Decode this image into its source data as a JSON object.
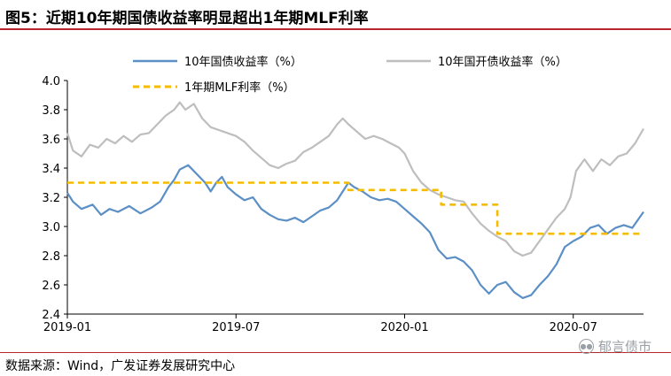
{
  "header": {
    "title": "图5：近期10年期国债收益率明显超出1年期MLF利率"
  },
  "footer": {
    "source": "数据来源：Wind，广发证券发展研究中心",
    "watermark": "郁言债市",
    "watermark_icon": "wechat-logo-icon"
  },
  "colors": {
    "gov10y": "#5b8fc6",
    "cdb10y": "#bebebe",
    "mlf1y": "#f5bb00",
    "rule": "#b8252d"
  },
  "chart_data": {
    "type": "line",
    "title": "图5：近期10年期国债收益率明显超出1年期MLF利率",
    "xlabel": "",
    "ylabel": "",
    "xlim": [
      0,
      20.5
    ],
    "ylim": [
      2.4,
      4.0
    ],
    "yticks": [
      "4.0",
      "3.8",
      "3.6",
      "3.4",
      "3.2",
      "3.0",
      "2.8",
      "2.6",
      "2.4"
    ],
    "xticks": [
      {
        "x": 0,
        "label": "2019-01"
      },
      {
        "x": 6,
        "label": "2019-07"
      },
      {
        "x": 12,
        "label": "2020-01"
      },
      {
        "x": 18,
        "label": "2020-07"
      }
    ],
    "x_unit": "months since 2019-01",
    "grid": false,
    "legend_position": "top",
    "series": [
      {
        "name": "10年国债收益率（%）",
        "style": "solid",
        "points": [
          [
            0,
            3.23
          ],
          [
            0.2,
            3.17
          ],
          [
            0.5,
            3.12
          ],
          [
            0.9,
            3.15
          ],
          [
            1.2,
            3.08
          ],
          [
            1.5,
            3.12
          ],
          [
            1.8,
            3.1
          ],
          [
            2.2,
            3.14
          ],
          [
            2.6,
            3.09
          ],
          [
            3.0,
            3.13
          ],
          [
            3.3,
            3.17
          ],
          [
            3.6,
            3.27
          ],
          [
            3.8,
            3.32
          ],
          [
            4.0,
            3.39
          ],
          [
            4.3,
            3.42
          ],
          [
            4.6,
            3.36
          ],
          [
            4.9,
            3.3
          ],
          [
            5.1,
            3.24
          ],
          [
            5.3,
            3.3
          ],
          [
            5.5,
            3.34
          ],
          [
            5.7,
            3.27
          ],
          [
            6.0,
            3.22
          ],
          [
            6.3,
            3.18
          ],
          [
            6.6,
            3.2
          ],
          [
            6.9,
            3.12
          ],
          [
            7.2,
            3.08
          ],
          [
            7.5,
            3.05
          ],
          [
            7.8,
            3.04
          ],
          [
            8.1,
            3.06
          ],
          [
            8.4,
            3.03
          ],
          [
            8.7,
            3.07
          ],
          [
            9.0,
            3.11
          ],
          [
            9.3,
            3.13
          ],
          [
            9.6,
            3.18
          ],
          [
            9.8,
            3.24
          ],
          [
            10.0,
            3.3
          ],
          [
            10.2,
            3.27
          ],
          [
            10.5,
            3.24
          ],
          [
            10.8,
            3.2
          ],
          [
            11.1,
            3.18
          ],
          [
            11.4,
            3.19
          ],
          [
            11.7,
            3.17
          ],
          [
            12.0,
            3.12
          ],
          [
            12.3,
            3.07
          ],
          [
            12.6,
            3.02
          ],
          [
            12.9,
            2.96
          ],
          [
            13.2,
            2.84
          ],
          [
            13.5,
            2.78
          ],
          [
            13.8,
            2.79
          ],
          [
            14.1,
            2.76
          ],
          [
            14.4,
            2.7
          ],
          [
            14.7,
            2.6
          ],
          [
            15.0,
            2.54
          ],
          [
            15.3,
            2.6
          ],
          [
            15.6,
            2.62
          ],
          [
            15.9,
            2.55
          ],
          [
            16.2,
            2.51
          ],
          [
            16.5,
            2.53
          ],
          [
            16.8,
            2.6
          ],
          [
            17.1,
            2.66
          ],
          [
            17.4,
            2.74
          ],
          [
            17.7,
            2.86
          ],
          [
            18.0,
            2.9
          ],
          [
            18.3,
            2.93
          ],
          [
            18.6,
            2.99
          ],
          [
            18.9,
            3.01
          ],
          [
            19.2,
            2.95
          ],
          [
            19.5,
            2.99
          ],
          [
            19.8,
            3.01
          ],
          [
            20.1,
            2.99
          ],
          [
            20.5,
            3.1
          ]
        ]
      },
      {
        "name": "10年国开债收益率（%）",
        "style": "solid",
        "points": [
          [
            0,
            3.64
          ],
          [
            0.2,
            3.52
          ],
          [
            0.5,
            3.48
          ],
          [
            0.8,
            3.56
          ],
          [
            1.1,
            3.54
          ],
          [
            1.4,
            3.6
          ],
          [
            1.7,
            3.57
          ],
          [
            2.0,
            3.62
          ],
          [
            2.3,
            3.58
          ],
          [
            2.6,
            3.63
          ],
          [
            2.9,
            3.64
          ],
          [
            3.2,
            3.7
          ],
          [
            3.5,
            3.76
          ],
          [
            3.8,
            3.8
          ],
          [
            4.0,
            3.85
          ],
          [
            4.2,
            3.8
          ],
          [
            4.5,
            3.84
          ],
          [
            4.8,
            3.74
          ],
          [
            5.1,
            3.68
          ],
          [
            5.4,
            3.66
          ],
          [
            5.7,
            3.64
          ],
          [
            6.0,
            3.62
          ],
          [
            6.3,
            3.58
          ],
          [
            6.6,
            3.52
          ],
          [
            6.9,
            3.47
          ],
          [
            7.2,
            3.42
          ],
          [
            7.5,
            3.4
          ],
          [
            7.8,
            3.43
          ],
          [
            8.1,
            3.45
          ],
          [
            8.4,
            3.51
          ],
          [
            8.7,
            3.54
          ],
          [
            9.0,
            3.58
          ],
          [
            9.3,
            3.62
          ],
          [
            9.6,
            3.7
          ],
          [
            9.8,
            3.74
          ],
          [
            10.0,
            3.7
          ],
          [
            10.3,
            3.65
          ],
          [
            10.6,
            3.6
          ],
          [
            10.9,
            3.62
          ],
          [
            11.2,
            3.6
          ],
          [
            11.5,
            3.57
          ],
          [
            11.8,
            3.54
          ],
          [
            12.0,
            3.5
          ],
          [
            12.3,
            3.38
          ],
          [
            12.6,
            3.3
          ],
          [
            12.9,
            3.25
          ],
          [
            13.2,
            3.22
          ],
          [
            13.5,
            3.2
          ],
          [
            13.8,
            3.18
          ],
          [
            14.1,
            3.17
          ],
          [
            14.4,
            3.09
          ],
          [
            14.7,
            3.02
          ],
          [
            15.0,
            2.97
          ],
          [
            15.3,
            2.93
          ],
          [
            15.6,
            2.9
          ],
          [
            15.9,
            2.83
          ],
          [
            16.2,
            2.8
          ],
          [
            16.5,
            2.82
          ],
          [
            16.8,
            2.9
          ],
          [
            17.1,
            2.98
          ],
          [
            17.4,
            3.06
          ],
          [
            17.7,
            3.12
          ],
          [
            17.9,
            3.2
          ],
          [
            18.1,
            3.38
          ],
          [
            18.4,
            3.46
          ],
          [
            18.7,
            3.38
          ],
          [
            19.0,
            3.46
          ],
          [
            19.3,
            3.42
          ],
          [
            19.6,
            3.48
          ],
          [
            19.9,
            3.5
          ],
          [
            20.2,
            3.57
          ],
          [
            20.5,
            3.67
          ]
        ]
      },
      {
        "name": "1年期MLF利率（%）",
        "style": "dashed",
        "points": [
          [
            0,
            3.3
          ],
          [
            10.0,
            3.3
          ],
          [
            10.0,
            3.25
          ],
          [
            13.3,
            3.25
          ],
          [
            13.3,
            3.15
          ],
          [
            15.3,
            3.15
          ],
          [
            15.3,
            2.95
          ],
          [
            20.5,
            2.95
          ]
        ]
      }
    ]
  }
}
